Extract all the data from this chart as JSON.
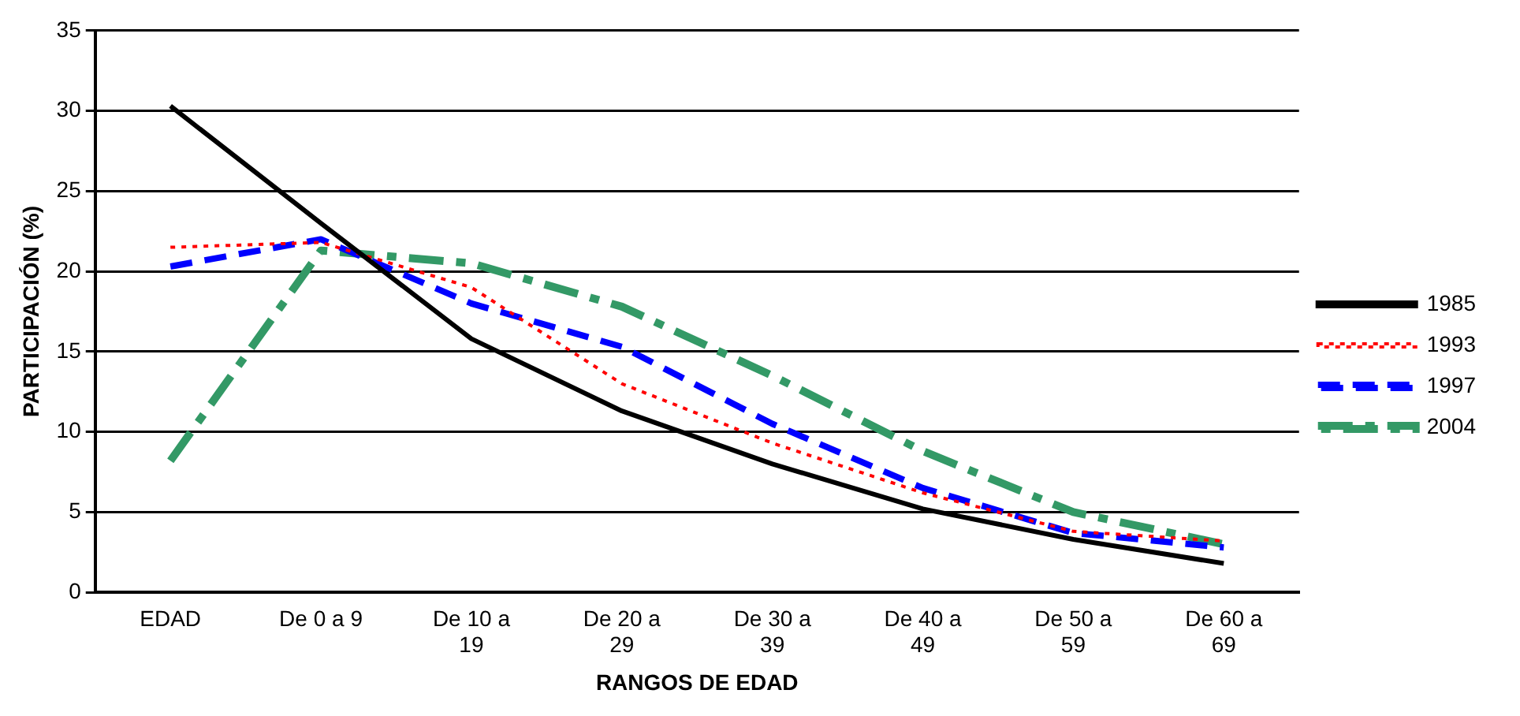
{
  "chart_data": {
    "type": "line",
    "xlabel": "RANGOS DE EDAD",
    "ylabel": "PARTICIPACIÓN (%)",
    "categories": [
      "EDAD",
      "De 0 a 9",
      "De 10 a 19",
      "De 20 a 29",
      "De 30 a 39",
      "De 40 a 49",
      "De 50 a 59",
      "De 60 a 69"
    ],
    "series": [
      {
        "name": "1985",
        "color": "#000000",
        "line_style": "solid",
        "values": [
          30.3,
          23,
          15.8,
          11.3,
          8.0,
          5.2,
          3.3,
          1.8
        ]
      },
      {
        "name": "1993",
        "color": "#ff0000",
        "line_style": "dotted",
        "values": [
          21.5,
          21.8,
          19.0,
          13.0,
          9.3,
          6.2,
          3.8,
          3.2
        ]
      },
      {
        "name": "1997",
        "color": "#0000ff",
        "line_style": "dashed",
        "values": [
          20.3,
          22.0,
          18.0,
          15.3,
          10.5,
          6.5,
          3.7,
          2.8
        ]
      },
      {
        "name": "2004",
        "color": "#339966",
        "line_style": "dashed",
        "values": [
          8.2,
          21.3,
          20.5,
          17.8,
          13.5,
          8.8,
          5.0,
          3.0
        ]
      }
    ],
    "ylim": [
      0,
      35
    ],
    "yticks": [
      0,
      5,
      10,
      15,
      20,
      25,
      30,
      35
    ],
    "grid": "y",
    "legend": "right",
    "marker": "none"
  }
}
